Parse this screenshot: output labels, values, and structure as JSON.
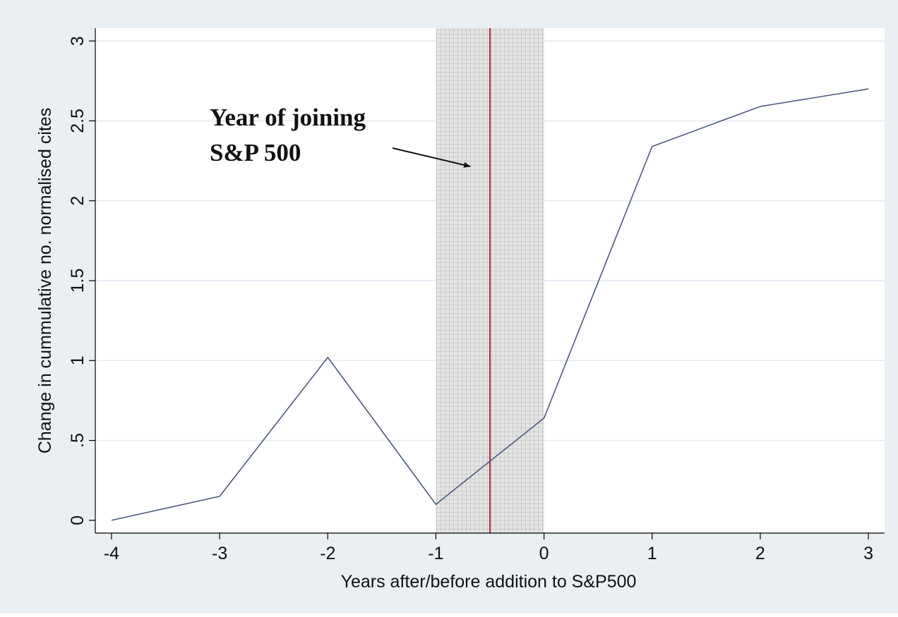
{
  "chart_data": {
    "type": "line",
    "xlabel": "Years after/before addition to S&P500",
    "ylabel": "Change in cummulative no. normalised cites",
    "x": [
      -4,
      -3,
      -2,
      -1,
      0,
      1,
      2,
      3
    ],
    "series": [
      {
        "values": [
          0.0,
          0.15,
          1.02,
          0.1,
          0.64,
          2.34,
          2.59,
          2.7
        ]
      }
    ],
    "xlim": [
      -4.15,
      3.15
    ],
    "ylim": [
      -0.08,
      3.08
    ],
    "x_ticks": [
      {
        "value": -4,
        "label": "-4"
      },
      {
        "value": -3,
        "label": "-3"
      },
      {
        "value": -2,
        "label": "-2"
      },
      {
        "value": -1,
        "label": "-1"
      },
      {
        "value": 0,
        "label": "0"
      },
      {
        "value": 1,
        "label": "1"
      },
      {
        "value": 2,
        "label": "2"
      },
      {
        "value": 3,
        "label": "3"
      }
    ],
    "y_ticks": [
      {
        "value": 0,
        "label": "0"
      },
      {
        "value": 0.5,
        "label": ".5"
      },
      {
        "value": 1,
        "label": "1"
      },
      {
        "value": 1.5,
        "label": "1.5"
      },
      {
        "value": 2,
        "label": "2"
      },
      {
        "value": 2.5,
        "label": "2.5"
      },
      {
        "value": 3,
        "label": "3"
      }
    ],
    "grid": true,
    "shaded_region": {
      "x_start": -1,
      "x_end": 0
    },
    "reference_line": {
      "x": -0.5,
      "color": "#c0203a"
    },
    "annotation": {
      "lines": [
        "Year of joining",
        "S&P 500"
      ]
    },
    "colors": {
      "outer_background": "#e9eff2",
      "plot_background": "#ffffff",
      "line": "#4a5a7c",
      "grid": "#dfe9ee",
      "shade": "#c8c8c8"
    }
  }
}
